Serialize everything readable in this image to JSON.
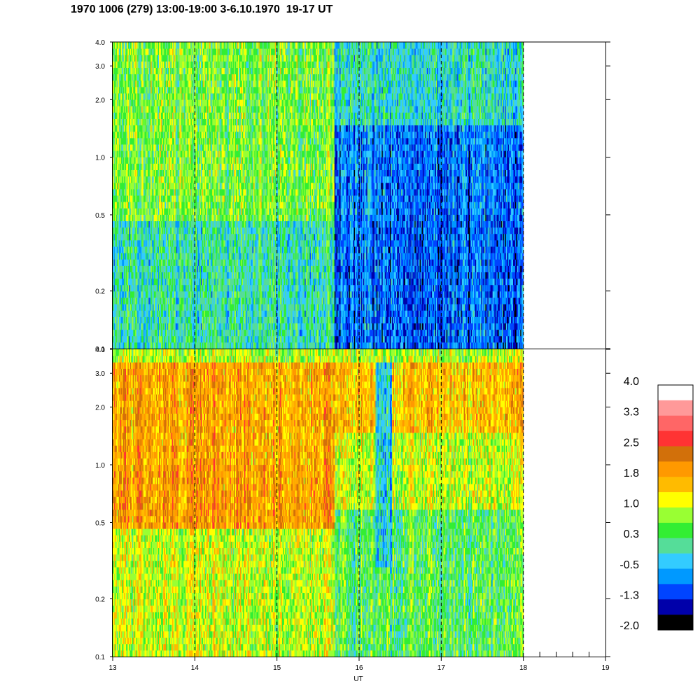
{
  "title": "1970 1006 (279) 13:00-19:00 3-6.10.1970  19-17 UT",
  "chart_data": {
    "type": "heatmap",
    "xlabel": "UT",
    "x_ticks": [
      "13",
      "14",
      "15",
      "16",
      "17",
      "18",
      "19"
    ],
    "xlim": [
      13,
      19
    ],
    "data_extent_x": [
      13,
      18
    ],
    "dashed_gridlines_x": [
      14,
      15,
      16,
      17,
      18
    ],
    "y_scale": "log",
    "ylim": [
      0.1,
      4.0
    ],
    "y_ticks": [
      {
        "value": 0.1,
        "label": "0.1"
      },
      {
        "value": 0.2,
        "label": "0.2"
      },
      {
        "value": 0.5,
        "label": "0.5"
      },
      {
        "value": 1.0,
        "label": "1.0"
      },
      {
        "value": 2.0,
        "label": "2.0"
      },
      {
        "value": 3.0,
        "label": "3.0"
      },
      {
        "value": 4.0,
        "label": "4.0"
      }
    ],
    "panels": [
      {
        "name": "top",
        "regions": [
          {
            "x": [
              13.0,
              15.7
            ],
            "y": [
              0.1,
              0.45
            ],
            "level": 0.0
          },
          {
            "x": [
              13.0,
              15.7
            ],
            "y": [
              0.45,
              4.0
            ],
            "level": 0.6
          },
          {
            "x": [
              15.7,
              18.0
            ],
            "y": [
              0.1,
              0.5
            ],
            "level": -0.9
          },
          {
            "x": [
              15.7,
              18.0
            ],
            "y": [
              0.5,
              1.5
            ],
            "level": -0.8
          },
          {
            "x": [
              15.7,
              18.0
            ],
            "y": [
              1.5,
              4.0
            ],
            "level": -0.1
          }
        ]
      },
      {
        "name": "bottom",
        "regions": [
          {
            "x": [
              13.0,
              15.7
            ],
            "y": [
              0.1,
              0.45
            ],
            "level": 1.0
          },
          {
            "x": [
              13.0,
              15.7
            ],
            "y": [
              0.45,
              1.0
            ],
            "level": 1.9
          },
          {
            "x": [
              13.0,
              15.7
            ],
            "y": [
              1.0,
              3.5
            ],
            "level": 1.8
          },
          {
            "x": [
              15.7,
              18.0
            ],
            "y": [
              0.1,
              0.6
            ],
            "level": 0.4
          },
          {
            "x": [
              15.7,
              18.0
            ],
            "y": [
              0.6,
              1.5
            ],
            "level": 1.0
          },
          {
            "x": [
              15.7,
              18.0
            ],
            "y": [
              1.5,
              3.5
            ],
            "level": 1.6
          },
          {
            "x": [
              13.0,
              18.0
            ],
            "y": [
              3.5,
              4.0
            ],
            "level": 0.9
          },
          {
            "x": [
              16.2,
              16.4
            ],
            "y": [
              0.3,
              3.5
            ],
            "level": -0.3
          }
        ]
      }
    ],
    "colorbar": {
      "range": [
        -2.0,
        4.0
      ],
      "labels": [
        "4.0",
        "3.3",
        "2.5",
        "1.8",
        "1.0",
        "0.3",
        "-0.5",
        "-1.3",
        "-2.0"
      ],
      "colors_top_to_bottom": [
        "#ffffff",
        "#ff9999",
        "#ff6666",
        "#ff3333",
        "#d2700a",
        "#ff9900",
        "#ffbb00",
        "#ffff00",
        "#99ff33",
        "#33ee33",
        "#55dd99",
        "#33ccff",
        "#0099ff",
        "#0044ff",
        "#0000aa",
        "#000000"
      ]
    }
  }
}
